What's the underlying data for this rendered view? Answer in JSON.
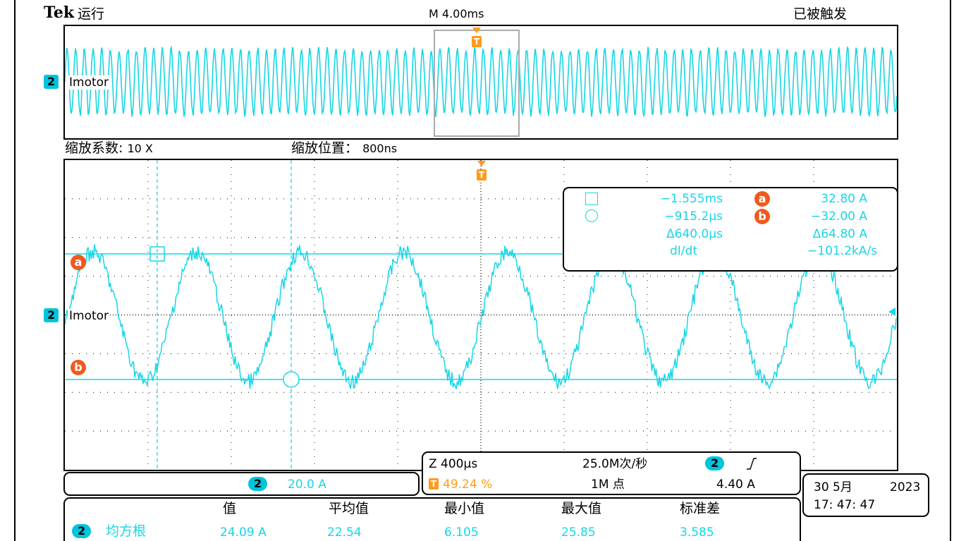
{
  "header": {
    "brand": "Tek",
    "run_state": "运行",
    "timebase": "M 4.00ms",
    "trigger_state": "已被触发"
  },
  "overview": {
    "channel_marker": "2",
    "trace_label": "Imotor"
  },
  "zoom_info": {
    "factor_label": "缩放系数:",
    "factor_value": "10 X",
    "position_label": "缩放位置：",
    "position_value": "800ns"
  },
  "main_plot": {
    "trace_label": "Imotor",
    "channel_marker": "2",
    "cursor_a_label": "a",
    "cursor_b_label": "b"
  },
  "cursor_readout": {
    "square_time": "−1.555ms",
    "circle_time": "−915.2µs",
    "delta_time": "Δ640.0µs",
    "didt_label": "dI/dt",
    "a_label": "a",
    "b_label": "b",
    "a_value": "32.80 A",
    "b_value": "−32.00 A",
    "delta_value": "Δ64.80 A",
    "didt_value": "−101.2kA/s"
  },
  "channel_scale": {
    "channel": "2",
    "scale": "20.0 A"
  },
  "acquisition": {
    "zoom_timebase": "Z 400µs",
    "sample_rate": "25.0M次/秒",
    "trigger_channel": "2",
    "trigger_slope_icon": "rising-edge-icon",
    "trigger_position": "49.24 %",
    "record_length": "1M 点",
    "trigger_level": "4.40 A",
    "trigger_marker": "T"
  },
  "datetime": {
    "date_day_month": "30 5月",
    "year": "2023",
    "time": "17: 47: 47"
  },
  "measurements": {
    "channel": "2",
    "type": "均方根",
    "headers": [
      "值",
      "平均值",
      "最小值",
      "最大值",
      "标准差"
    ],
    "values": [
      "24.09 A",
      "22.54",
      "6.105",
      "25.85",
      "3.585"
    ]
  },
  "colors": {
    "trace": "#17d6e6",
    "trigger": "#ff9b1a",
    "cursor_marker": "#f05a1e"
  }
}
